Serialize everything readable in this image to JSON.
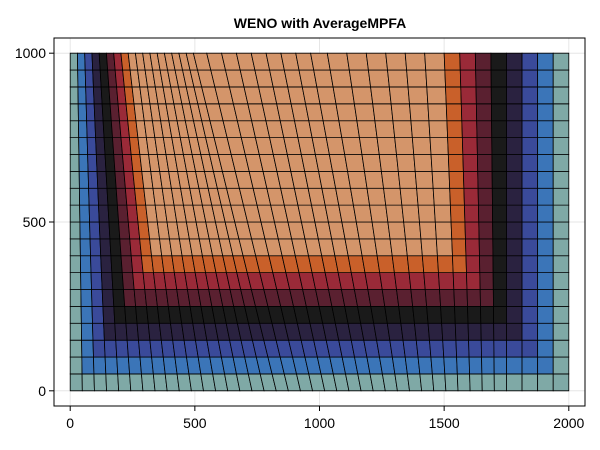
{
  "chart_data": {
    "type": "heatmap",
    "title": "WENO with AverageMPFA",
    "xlabel": "",
    "ylabel": "",
    "xlim": [
      -65,
      2065
    ],
    "ylim": [
      -45,
      1045
    ],
    "grid": true,
    "x_ticks": [
      {
        "value": 0,
        "label": "0"
      },
      {
        "value": 500,
        "label": "500"
      },
      {
        "value": 1000,
        "label": "1000"
      },
      {
        "value": 1500,
        "label": "1500"
      },
      {
        "value": 2000,
        "label": "2000"
      }
    ],
    "y_ticks": [
      {
        "value": 0,
        "label": "0"
      },
      {
        "value": 500,
        "label": "500"
      },
      {
        "value": 1000,
        "label": "1000"
      }
    ],
    "mesh": {
      "nx": 40,
      "ny": 20,
      "bottom_edge": [
        0,
        2000
      ],
      "top_edge": [
        0,
        2000
      ],
      "bottom_curve": [
        [
          0,
          0
        ],
        [
          0.9,
          1750
        ],
        [
          1.0,
          2000
        ]
      ],
      "top_curve": [
        [
          0,
          0
        ],
        [
          0.43,
          500
        ],
        [
          0.64,
          1000
        ],
        [
          0.8,
          1500
        ],
        [
          1.0,
          2000
        ]
      ]
    },
    "colormap": [
      "#7fa9a6",
      "#3b75b8",
      "#3a4a9a",
      "#2a2240",
      "#1a1a1a",
      "#5a2030",
      "#9a2a38",
      "#c9602a",
      "#d4956a"
    ],
    "colors": {
      "background": "#ffffff",
      "frame": "#000000",
      "grid": "#e6e6e6",
      "cell_edge": "#000000"
    }
  }
}
